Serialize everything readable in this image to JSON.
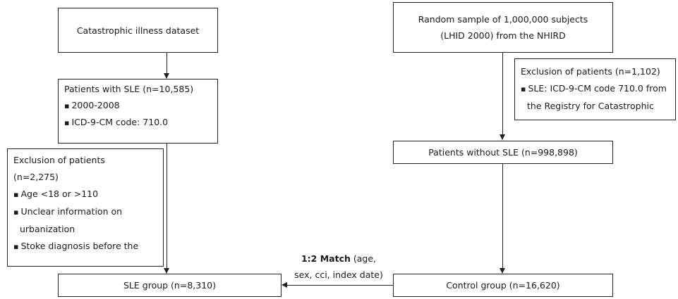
{
  "left": {
    "dataset_box": "Catastrophic illness dataset",
    "patients_box": {
      "title": "Patients with SLE (n=10,585)",
      "bullets": [
        "2000-2008",
        "ICD-9-CM code: 710.0"
      ]
    },
    "exclusion_box": {
      "title": "Exclusion of patients",
      "count": "(n=2,275)",
      "bullets": [
        "Age <18 or >110",
        "Unclear information on",
        "Stoke diagnosis before the"
      ],
      "continuation": "urbanization"
    },
    "group_box": "SLE group (n=8,310)"
  },
  "right": {
    "sample_box": {
      "line1": "Random sample of 1,000,000 subjects",
      "line2": "(LHID 2000) from the NHIRD"
    },
    "exclusion_box": {
      "title": "Exclusion of patients (n=1,102)",
      "bullet": "SLE: ICD-9-CM code 710.0 from",
      "continuation": "the Registry for Catastrophic"
    },
    "patients_box": "Patients without SLE (n=998,898)",
    "group_box": "Control group (n=16,620)"
  },
  "match": {
    "bold": "1:2 Match",
    "rest_line1": " (age,",
    "line2": "sex, cci, index date)"
  }
}
